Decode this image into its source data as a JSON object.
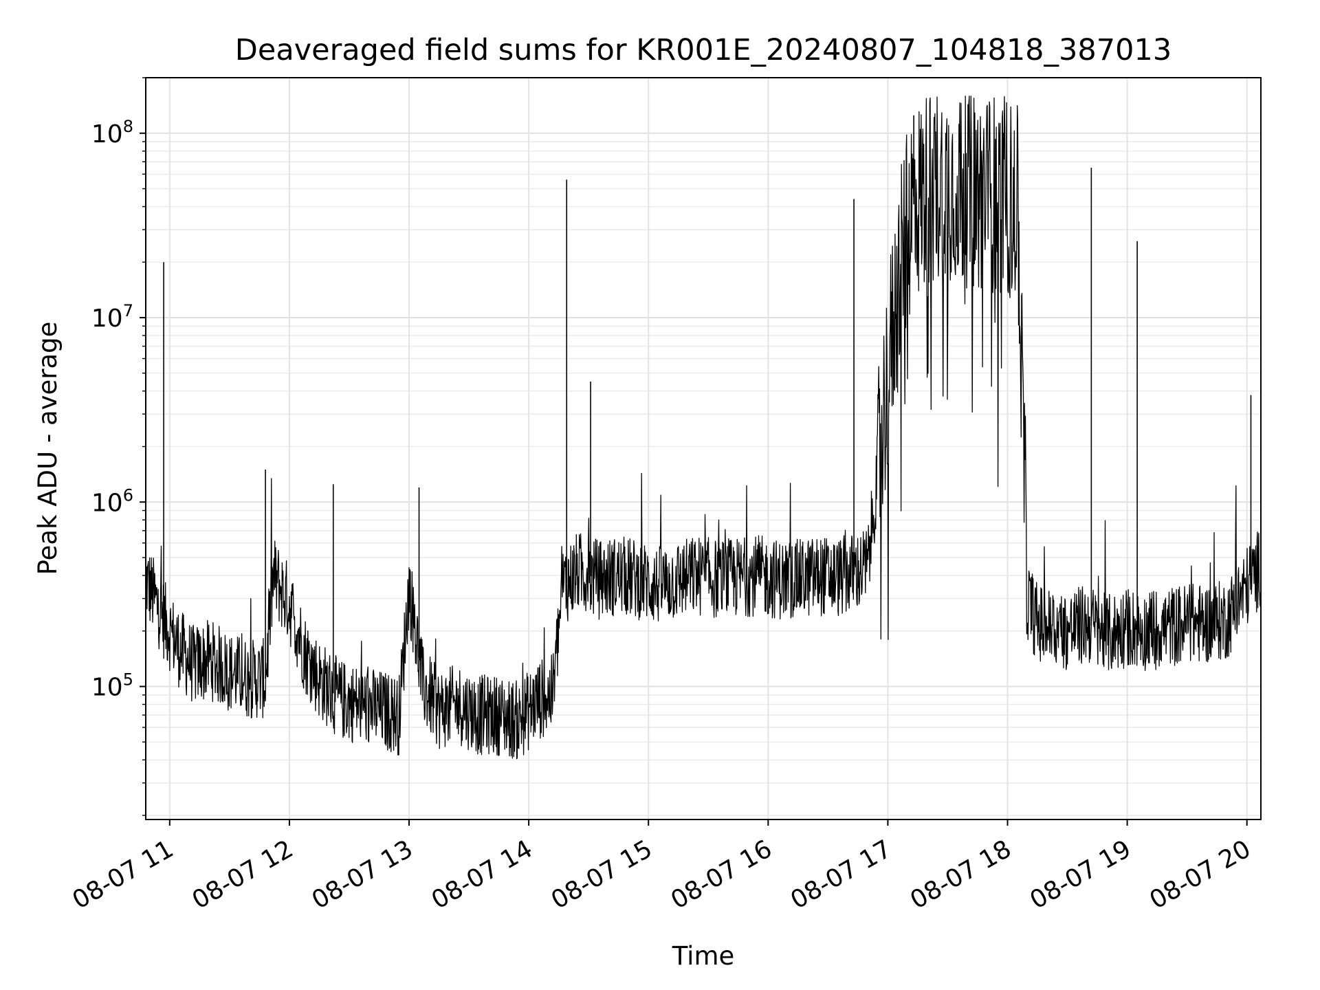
{
  "chart_data": {
    "type": "line",
    "title": "Deaveraged field sums for KR001E_20240807_104818_387013",
    "xlabel": "Time",
    "ylabel": "Peak ADU - average",
    "x_scale": "time",
    "y_scale": "log",
    "xlim": [
      "2024-08-07 10:48",
      "2024-08-07 20:07"
    ],
    "ylim": [
      19000,
      200000000
    ],
    "x_ticks": [
      "08-07 11",
      "08-07 12",
      "08-07 13",
      "08-07 14",
      "08-07 15",
      "08-07 16",
      "08-07 17",
      "08-07 18",
      "08-07 19",
      "08-07 20"
    ],
    "y_ticks": [
      {
        "base": "10",
        "exp": "5"
      },
      {
        "base": "10",
        "exp": "6"
      },
      {
        "base": "10",
        "exp": "7"
      },
      {
        "base": "10",
        "exp": "8"
      }
    ],
    "grid": true,
    "legend": false,
    "line_color": "#000000",
    "series": [
      {
        "x": [
          "10:48",
          "10:58",
          "11:05",
          "11:12",
          "11:20",
          "11:30",
          "11:40",
          "11:48",
          "11:52",
          "12:00",
          "12:08",
          "12:15",
          "12:25",
          "12:35",
          "12:45",
          "12:55",
          "13:00",
          "13:07",
          "13:15",
          "13:25",
          "13:35",
          "13:45",
          "13:55",
          "14:05",
          "14:12",
          "14:17",
          "14:25",
          "14:35",
          "14:45",
          "14:55",
          "15:05",
          "15:15",
          "15:25",
          "15:35",
          "15:45",
          "15:55",
          "16:05",
          "16:15",
          "16:25",
          "16:35",
          "16:45",
          "16:50",
          "16:55",
          "17:00",
          "17:05",
          "17:12",
          "17:20",
          "17:30",
          "17:40",
          "17:50",
          "18:00",
          "18:05",
          "18:10",
          "18:15",
          "18:20",
          "18:30",
          "18:40",
          "18:50",
          "18:55",
          "19:00",
          "19:10",
          "19:20",
          "19:30",
          "19:40",
          "19:50",
          "20:00",
          "20:07"
        ],
        "y": [
          380000,
          220000,
          160000,
          130000,
          140000,
          120000,
          110000,
          110000,
          400000,
          280000,
          150000,
          110000,
          85000,
          80000,
          75000,
          70000,
          350000,
          100000,
          75000,
          80000,
          70000,
          70000,
          65000,
          85000,
          90000,
          350000,
          420000,
          380000,
          400000,
          380000,
          350000,
          380000,
          400000,
          380000,
          390000,
          400000,
          380000,
          380000,
          400000,
          390000,
          420000,
          450000,
          1500000,
          5000000,
          15000000,
          40000000,
          50000000,
          55000000,
          50000000,
          48000000,
          45000000,
          40000000,
          300000,
          220000,
          210000,
          200000,
          220000,
          190000,
          200000,
          210000,
          200000,
          210000,
          220000,
          220000,
          230000,
          350000,
          450000
        ]
      }
    ],
    "spikes": [
      {
        "x": "10:57",
        "y": 20000000
      },
      {
        "x": "11:48",
        "y": 1500000
      },
      {
        "x": "12:22",
        "y": 1250000
      },
      {
        "x": "13:05",
        "y": 1200000
      },
      {
        "x": "14:19",
        "y": 56000000
      },
      {
        "x": "14:31",
        "y": 4500000
      },
      {
        "x": "16:43",
        "y": 44000000
      },
      {
        "x": "17:13",
        "y": 125000000
      },
      {
        "x": "18:42",
        "y": 65000000
      },
      {
        "x": "19:05",
        "y": 26000000
      },
      {
        "x": "20:02",
        "y": 3800000
      }
    ]
  }
}
